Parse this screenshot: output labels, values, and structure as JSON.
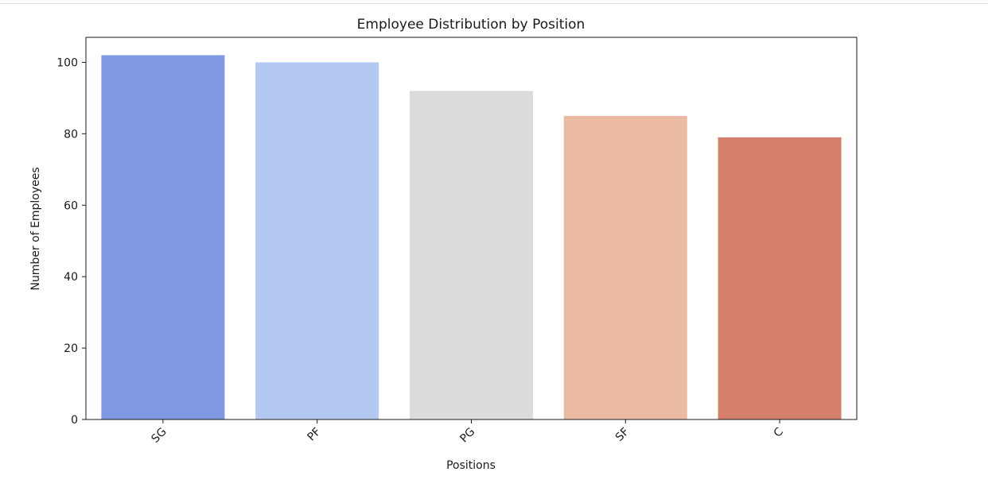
{
  "chart_data": {
    "type": "bar",
    "title": "Employee Distribution by Position",
    "xlabel": "Positions",
    "ylabel": "Number of Employees",
    "categories": [
      "SG",
      "PF",
      "PG",
      "SF",
      "C"
    ],
    "values": [
      102,
      100,
      92,
      85,
      79
    ],
    "colors": [
      "#7f98e2",
      "#b4c9f2",
      "#dcdcdc",
      "#eabaa3",
      "#d5806d"
    ],
    "ylim": [
      0,
      107
    ],
    "yticks": [
      0,
      20,
      40,
      60,
      80,
      100
    ],
    "grid": false,
    "legend": "none"
  }
}
